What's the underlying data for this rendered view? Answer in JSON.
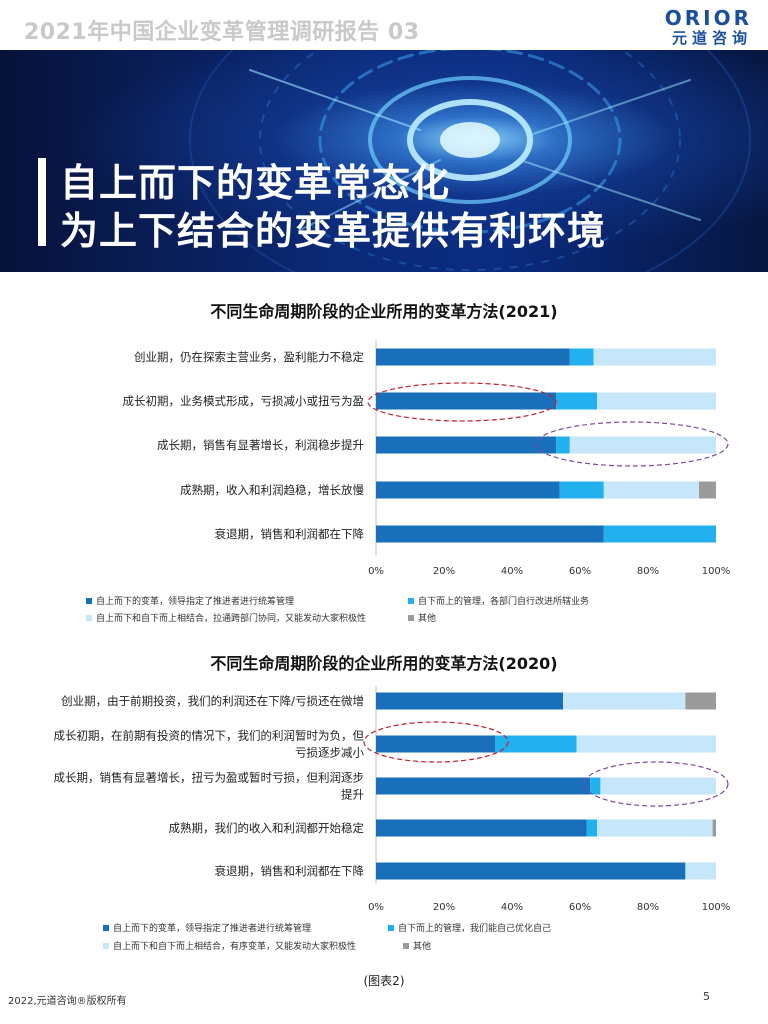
{
  "header": {
    "title": "2021年中国企业变革管理调研报告 03"
  },
  "logo": {
    "top": "ORIOR",
    "bottom": "元道咨询",
    "color": "#1b4f9c"
  },
  "banner": {
    "line1": "自上而下的变革常态化",
    "line2": "为上下结合的变革提供有利环境"
  },
  "colors": {
    "top_down": "#1a6fba",
    "bottom_up": "#22b0ee",
    "combined": "#c6e6fa",
    "other": "#9b9b9b",
    "circle_red": "#c0202a",
    "circle_purple": "#7b4a9e"
  },
  "chart_data": [
    {
      "type": "bar",
      "stacked": true,
      "orientation": "horizontal",
      "title": "不同生命周期阶段的企业所用的变革方法(2021)",
      "categories": [
        "创业期，仍在探索主营业务，盈利能力不稳定",
        "成长初期，业务模式形成，亏损减小或扭亏为盈",
        "成长期，销售有显著增长，利润稳步提升",
        "成熟期，收入和利润趋稳，增长放慢",
        "衰退期，销售和利润都在下降"
      ],
      "series": [
        {
          "name": "自上而下的变革，领导指定了推进者进行统筹管理",
          "values": [
            57,
            53,
            53,
            54,
            67
          ]
        },
        {
          "name": "自下而上的管理，各部门自行改进所辖业务",
          "values": [
            7,
            12,
            4,
            13,
            33
          ]
        },
        {
          "name": "自上而下和自下而上相结合，拉通跨部门协同，又能发动大家积极性",
          "values": [
            36,
            35,
            43,
            28,
            0
          ]
        },
        {
          "name": "其他",
          "values": [
            0,
            0,
            0,
            5,
            0
          ]
        }
      ],
      "xticks": [
        "0%",
        "20%",
        "40%",
        "60%",
        "80%",
        "100%"
      ],
      "xlim": [
        0,
        100
      ],
      "legend_position": "bottom"
    },
    {
      "type": "bar",
      "stacked": true,
      "orientation": "horizontal",
      "title": "不同生命周期阶段的企业所用的变革方法(2020)",
      "categories": [
        "创业期，由于前期投资，我们的利润还在下降/亏损还在微增",
        "成长初期，在前期有投资的情况下，我们的利润暂时为负，但亏损逐步减小",
        "成长期，销售有显著增长，扭亏为盈或暂时亏损，但利润逐步提升",
        "成熟期，我们的收入和利润都开始稳定",
        "衰退期，销售和利润都在下降"
      ],
      "category_lines": [
        [
          "创业期，由于前期投资，我们的利润还在下降/亏损还在微增"
        ],
        [
          "成长初期，在前期有投资的情况下，我们的利润暂时为负，但",
          "亏损逐步减小"
        ],
        [
          "成长期，销售有显著增长，扭亏为盈或暂时亏损，但利润逐步",
          "提升"
        ],
        [
          "成熟期，我们的收入和利润都开始稳定"
        ],
        [
          "衰退期，销售和利润都在下降"
        ]
      ],
      "series": [
        {
          "name": "自上而下的变革，领导指定了推进者进行统筹管理",
          "values": [
            55,
            35,
            63,
            62,
            91
          ]
        },
        {
          "name": "自下而上的管理，我们能自己优化自己",
          "values": [
            0,
            24,
            3,
            3,
            0
          ]
        },
        {
          "name": "自上而下和自下而上相结合，有序变革，又能发动大家积极性",
          "values": [
            36,
            41,
            34,
            34,
            9
          ]
        },
        {
          "name": "其他",
          "values": [
            9,
            0,
            0,
            1,
            0
          ]
        }
      ],
      "xticks": [
        "0%",
        "20%",
        "40%",
        "60%",
        "80%",
        "100%"
      ],
      "xlim": [
        0,
        100
      ],
      "legend_position": "bottom"
    }
  ],
  "caption": "(图表2)",
  "footer": {
    "copyright": "2022,元道咨询®版权所有",
    "page": "5"
  }
}
